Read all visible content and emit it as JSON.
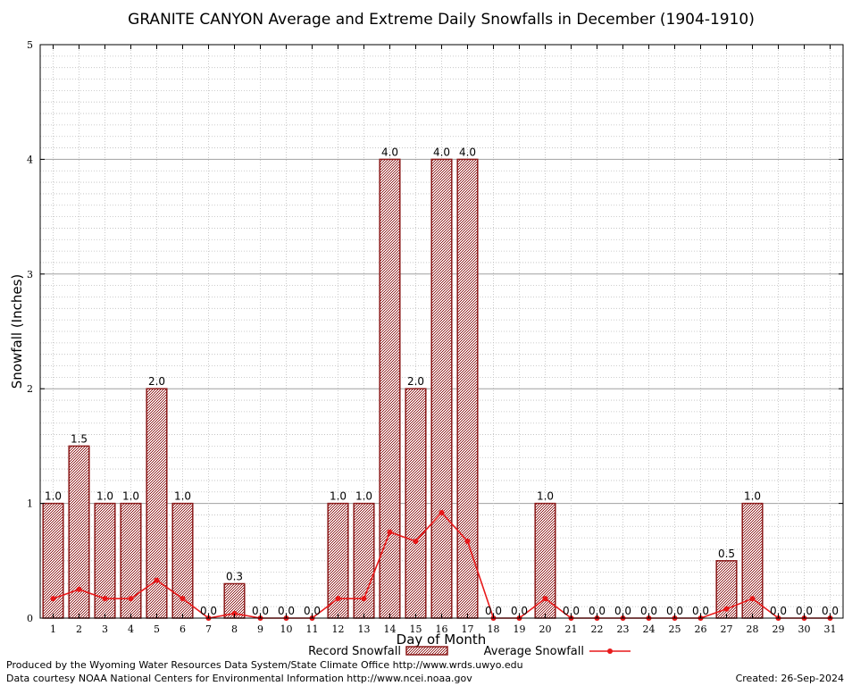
{
  "chart_data": {
    "type": "bar",
    "title": "GRANITE CANYON Average and Extreme Daily Snowfalls in December (1904-1910)",
    "xlabel": "Day of Month",
    "ylabel": "Snowfall (Inches)",
    "ylim": [
      0,
      5
    ],
    "yticks": [
      0,
      1,
      2,
      3,
      4,
      5
    ],
    "grid": true,
    "legend_position": "bottom",
    "categories": [
      "1",
      "2",
      "3",
      "4",
      "5",
      "6",
      "7",
      "8",
      "9",
      "10",
      "11",
      "12",
      "13",
      "14",
      "15",
      "16",
      "17",
      "18",
      "19",
      "20",
      "21",
      "22",
      "23",
      "24",
      "25",
      "26",
      "27",
      "28",
      "29",
      "30",
      "31"
    ],
    "series": [
      {
        "name": "Record Snowfall",
        "kind": "bar",
        "color": "#8b1a1a",
        "values": [
          1.0,
          1.5,
          1.0,
          1.0,
          2.0,
          1.0,
          0.0,
          0.3,
          0.0,
          0.0,
          0.0,
          1.0,
          1.0,
          4.0,
          2.0,
          4.0,
          4.0,
          0.0,
          0.0,
          1.0,
          0.0,
          0.0,
          0.0,
          0.0,
          0.0,
          0.0,
          0.5,
          1.0,
          0.0,
          0.0,
          0.0
        ],
        "labels": [
          "1.0",
          "1.5",
          "1.0",
          "1.0",
          "2.0",
          "1.0",
          "0.0",
          "0.3",
          "0.0",
          "0.0",
          "0.0",
          "1.0",
          "1.0",
          "4.0",
          "2.0",
          "4.0",
          "4.0",
          "0.0",
          "0.0",
          "1.0",
          "0.0",
          "0.0",
          "0.0",
          "0.0",
          "0.0",
          "0.0",
          "0.5",
          "1.0",
          "0.0",
          "0.0",
          "0.0"
        ]
      },
      {
        "name": "Average Snowfall",
        "kind": "line",
        "color": "#e8191a",
        "values": [
          0.17,
          0.25,
          0.17,
          0.17,
          0.33,
          0.17,
          0.0,
          0.04,
          0.0,
          0.0,
          0.0,
          0.17,
          0.17,
          0.75,
          0.67,
          0.92,
          0.67,
          0.0,
          0.0,
          0.17,
          0.0,
          0.0,
          0.0,
          0.0,
          0.0,
          0.0,
          0.08,
          0.17,
          0.0,
          0.0,
          0.0
        ]
      }
    ]
  },
  "footer": {
    "produced_by": "Produced by the Wyoming Water Resources Data System/State Climate Office http://www.wrds.uwyo.edu",
    "courtesy": "Data courtesy NOAA National Centers for Environmental Information http://www.ncei.noaa.gov",
    "created": "Created: 26-Sep-2024"
  }
}
